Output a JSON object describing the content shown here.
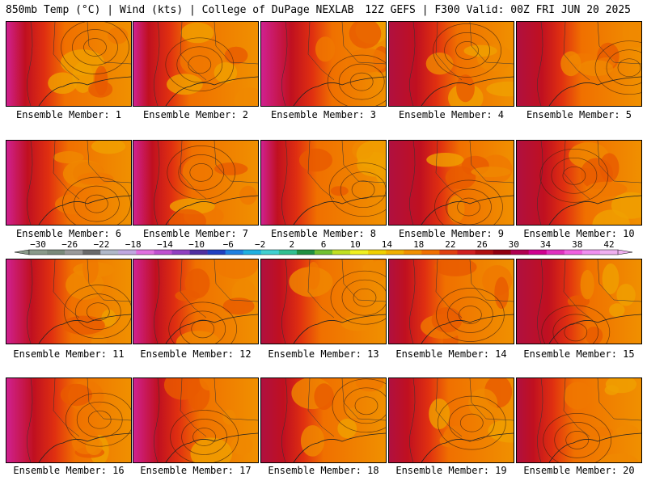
{
  "header": {
    "left_title": "850mb Temp (°C) | Wind (kts) | College of DuPage NEXLAB",
    "right_title": "12Z GEFS | F300 Valid: 00Z FRI JUN 20 2025"
  },
  "members": [
    {
      "label": "Ensemble Member: 1"
    },
    {
      "label": "Ensemble Member: 2"
    },
    {
      "label": "Ensemble Member: 3"
    },
    {
      "label": "Ensemble Member: 4"
    },
    {
      "label": "Ensemble Member: 5"
    },
    {
      "label": "Ensemble Member: 6"
    },
    {
      "label": "Ensemble Member: 7"
    },
    {
      "label": "Ensemble Member: 8"
    },
    {
      "label": "Ensemble Member: 9"
    },
    {
      "label": "Ensemble Member: 10"
    },
    {
      "label": "Ensemble Member: 11"
    },
    {
      "label": "Ensemble Member: 12"
    },
    {
      "label": "Ensemble Member: 13"
    },
    {
      "label": "Ensemble Member: 14"
    },
    {
      "label": "Ensemble Member: 15"
    },
    {
      "label": "Ensemble Member: 16"
    },
    {
      "label": "Ensemble Member: 17"
    },
    {
      "label": "Ensemble Member: 18"
    },
    {
      "label": "Ensemble Member: 19"
    },
    {
      "label": "Ensemble Member: 20"
    }
  ],
  "colorbar": {
    "ticks": [
      "−30",
      "−26",
      "−22",
      "−18",
      "−14",
      "−10",
      "−6",
      "−2",
      "2",
      "6",
      "10",
      "14",
      "18",
      "22",
      "26",
      "30",
      "34",
      "38",
      "42"
    ],
    "colors": [
      "#8a9a8a",
      "#7a8a7a",
      "#9a9a9a",
      "#6a6a6a",
      "#b0b8c8",
      "#c0a8e0",
      "#e070e0",
      "#c050d0",
      "#9040c0",
      "#5030a0",
      "#2040c0",
      "#2080e0",
      "#20b0e0",
      "#40d0d0",
      "#30c090",
      "#209040",
      "#70c030",
      "#c0e020",
      "#f0f020",
      "#f0d000",
      "#f0b000",
      "#f09000",
      "#f07000",
      "#e04010",
      "#d02020",
      "#b01010",
      "#900010",
      "#b00050",
      "#d00090",
      "#e030c0",
      "#f060e0",
      "#f090f0",
      "#f0b0f0"
    ]
  }
}
